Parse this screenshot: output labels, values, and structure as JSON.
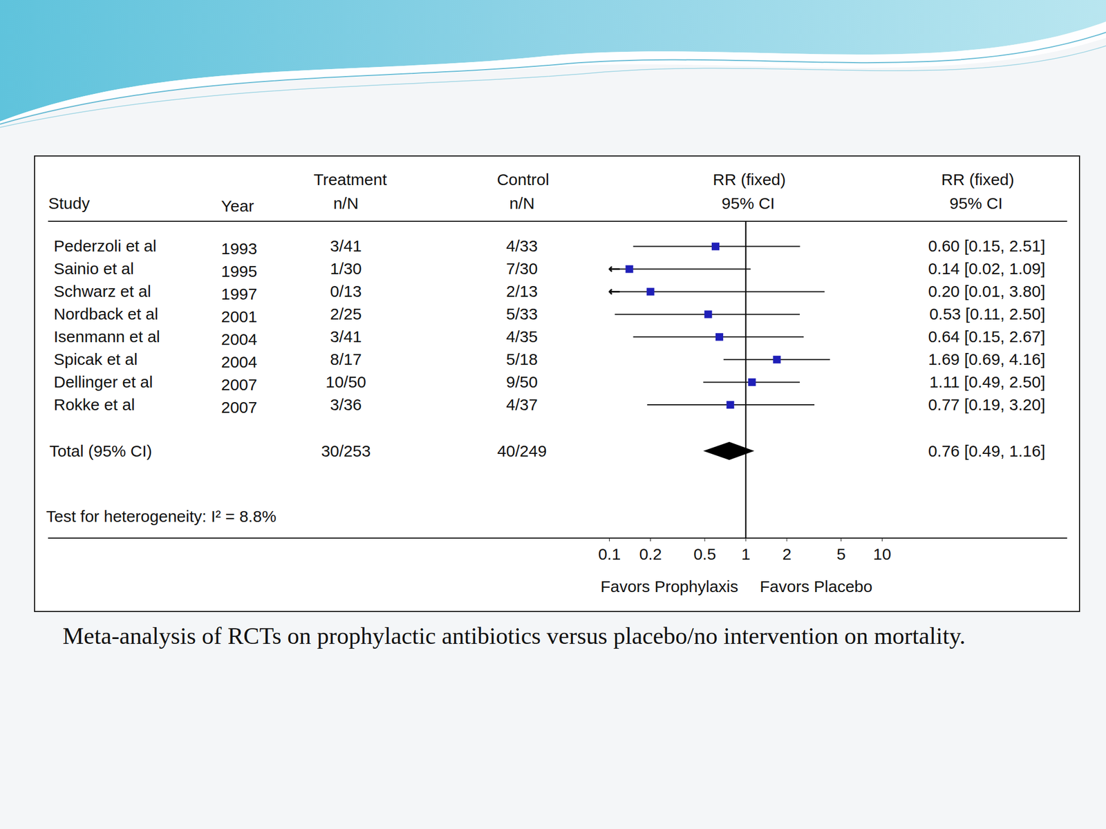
{
  "chart_data": {
    "type": "forest",
    "caption": "Meta-analysis of RCTs on prophylactic antibiotics versus placebo/no intervention on mortality.",
    "headers": {
      "study": "Study",
      "year": "Year",
      "treatment": [
        "Treatment",
        "n/N"
      ],
      "control": [
        "Control",
        "n/N"
      ],
      "plot": [
        "RR (fixed)",
        "95% CI"
      ],
      "estimate": [
        "RR (fixed)",
        "95% CI"
      ]
    },
    "studies": [
      {
        "study": "Pederzoli et al",
        "year": 1993,
        "treatment": "3/41",
        "control": "4/33",
        "rr": 0.6,
        "ci_low": 0.15,
        "ci_high": 2.51,
        "value_label": "0.60 [0.15, 2.51]"
      },
      {
        "study": "Sainio et al",
        "year": 1995,
        "treatment": "1/30",
        "control": "7/30",
        "rr": 0.14,
        "ci_low": 0.02,
        "ci_high": 1.09,
        "value_label": "0.14 [0.02, 1.09]"
      },
      {
        "study": "Schwarz et al",
        "year": 1997,
        "treatment": "0/13",
        "control": "2/13",
        "rr": 0.2,
        "ci_low": 0.01,
        "ci_high": 3.8,
        "value_label": "0.20 [0.01, 3.80]"
      },
      {
        "study": "Nordback et al",
        "year": 2001,
        "treatment": "2/25",
        "control": "5/33",
        "rr": 0.53,
        "ci_low": 0.11,
        "ci_high": 2.5,
        "value_label": "0.53 [0.11, 2.50]"
      },
      {
        "study": "Isenmann et al",
        "year": 2004,
        "treatment": "3/41",
        "control": "4/35",
        "rr": 0.64,
        "ci_low": 0.15,
        "ci_high": 2.67,
        "value_label": "0.64 [0.15, 2.67]"
      },
      {
        "study": "Spicak et al",
        "year": 2004,
        "treatment": "8/17",
        "control": "5/18",
        "rr": 1.69,
        "ci_low": 0.69,
        "ci_high": 4.16,
        "value_label": "1.69 [0.69, 4.16]"
      },
      {
        "study": "Dellinger et al",
        "year": 2007,
        "treatment": "10/50",
        "control": "9/50",
        "rr": 1.11,
        "ci_low": 0.49,
        "ci_high": 2.5,
        "value_label": "1.11 [0.49, 2.50]"
      },
      {
        "study": "Rokke et al",
        "year": 2007,
        "treatment": "3/36",
        "control": "4/37",
        "rr": 0.77,
        "ci_low": 0.19,
        "ci_high": 3.2,
        "value_label": "0.77 [0.19, 3.20]"
      }
    ],
    "total": {
      "label": "Total (95% CI)",
      "treatment": "30/253",
      "control": "40/249",
      "rr": 0.76,
      "ci_low": 0.49,
      "ci_high": 1.16,
      "value_label": "0.76 [0.49, 1.16]"
    },
    "heterogeneity": "Test for heterogeneity: I² = 8.8%",
    "log": "x",
    "xlim": [
      0.1,
      10
    ],
    "xticks": [
      0.1,
      0.2,
      0.5,
      1,
      2,
      5,
      10
    ],
    "reference_line": 1,
    "x_label_left": "Favors Prophylaxis",
    "x_label_right": "Favors Placebo",
    "color": "#1f1fb8"
  }
}
